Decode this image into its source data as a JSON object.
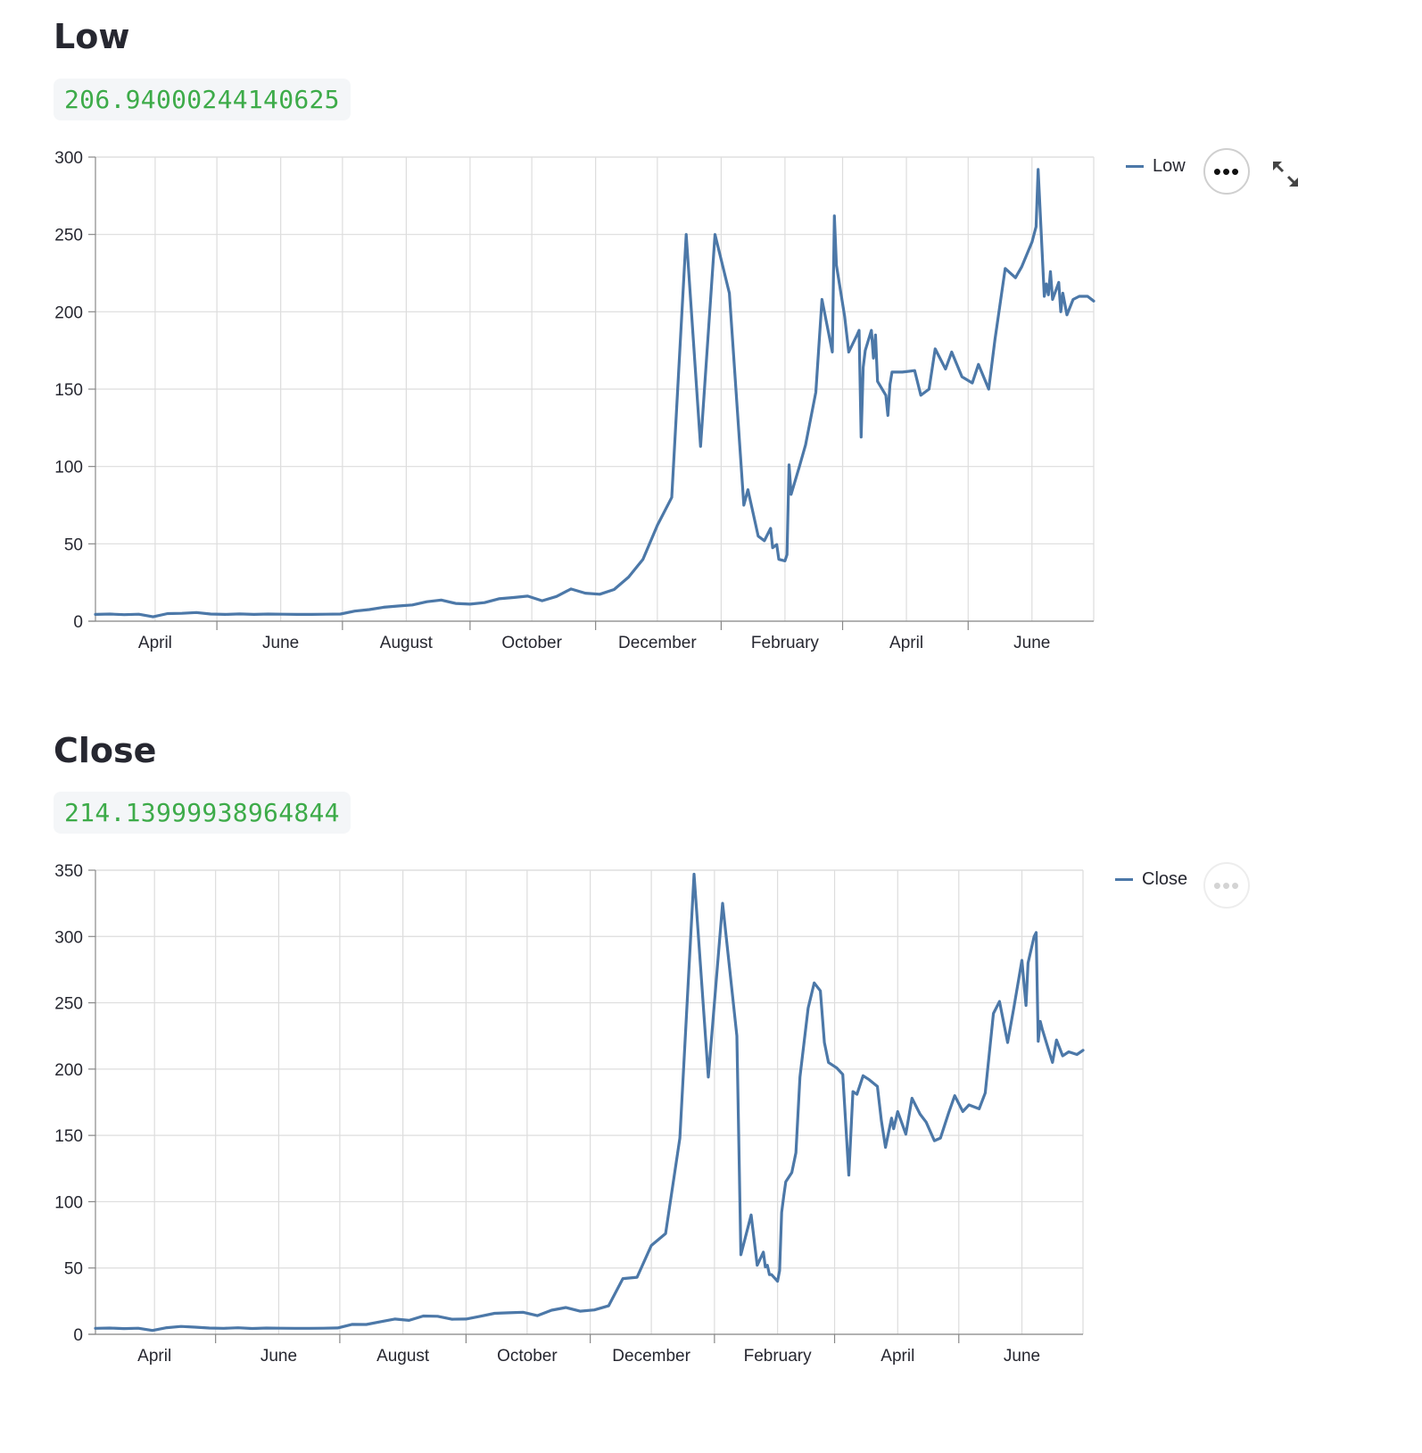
{
  "colors": {
    "series": "#4c78a8",
    "value_text": "#3dab49",
    "value_bg": "#f4f6f8",
    "title": "#262730",
    "grid": "#dddddd"
  },
  "icons": {
    "menu": "more-horizontal-icon",
    "expand": "fullscreen-expand-icon"
  },
  "sections": [
    {
      "title": "Low",
      "value": "206.94000244140625",
      "legend_label": "Low",
      "menu_glyph": "•••",
      "menu_active": true,
      "show_expand": true
    },
    {
      "title": "Close",
      "value": "214.13999938964844",
      "legend_label": "Close",
      "menu_glyph": "•••",
      "menu_active": false,
      "show_expand": false
    }
  ],
  "chart_data": [
    {
      "type": "line",
      "title": "",
      "xlabel": "",
      "ylabel": "",
      "ylim": [
        0,
        300
      ],
      "y_ticks": [
        0,
        50,
        100,
        150,
        200,
        250,
        300
      ],
      "x_ticks": [
        "April",
        "June",
        "August",
        "October",
        "December",
        "February",
        "April",
        "June"
      ],
      "x_domain": [
        "2020-03-03",
        "2021-07-01"
      ],
      "x_tick_dates": [
        "2020-04-01",
        "2020-06-01",
        "2020-08-01",
        "2020-10-01",
        "2020-12-01",
        "2021-02-01",
        "2021-04-01",
        "2021-06-01"
      ],
      "x_minor_tick_dates": [
        "2020-03-01",
        "2020-05-01",
        "2020-07-01",
        "2020-09-01",
        "2020-11-01",
        "2021-01-01",
        "2021-03-01",
        "2021-05-01"
      ],
      "grid": true,
      "legend": "top-right",
      "series": [
        {
          "name": "Low",
          "x": [
            "2020-03-03",
            "2020-03-10",
            "2020-03-17",
            "2020-03-24",
            "2020-03-31",
            "2020-04-07",
            "2020-04-14",
            "2020-04-21",
            "2020-04-28",
            "2020-05-05",
            "2020-05-12",
            "2020-05-19",
            "2020-05-26",
            "2020-06-02",
            "2020-06-09",
            "2020-06-16",
            "2020-06-23",
            "2020-06-30",
            "2020-07-07",
            "2020-07-14",
            "2020-07-21",
            "2020-07-28",
            "2020-08-04",
            "2020-08-11",
            "2020-08-18",
            "2020-08-25",
            "2020-09-01",
            "2020-09-08",
            "2020-09-15",
            "2020-09-22",
            "2020-09-29",
            "2020-10-06",
            "2020-10-13",
            "2020-10-20",
            "2020-10-27",
            "2020-11-03",
            "2020-11-10",
            "2020-11-17",
            "2020-11-24",
            "2020-12-01",
            "2020-12-08",
            "2020-12-15",
            "2020-12-22",
            "2020-12-29",
            "2021-01-05",
            "2021-01-12",
            "2021-01-14",
            "2021-01-19",
            "2021-01-22",
            "2021-01-25",
            "2021-01-26",
            "2021-01-27",
            "2021-01-28",
            "2021-01-29",
            "2021-02-01",
            "2021-02-02",
            "2021-02-03",
            "2021-02-04",
            "2021-02-08",
            "2021-02-11",
            "2021-02-16",
            "2021-02-19",
            "2021-02-24",
            "2021-02-25",
            "2021-02-26",
            "2021-03-02",
            "2021-03-04",
            "2021-03-08",
            "2021-03-09",
            "2021-03-10",
            "2021-03-11",
            "2021-03-12",
            "2021-03-15",
            "2021-03-16",
            "2021-03-17",
            "2021-03-18",
            "2021-03-22",
            "2021-03-23",
            "2021-03-24",
            "2021-03-25",
            "2021-03-30",
            "2021-04-05",
            "2021-04-08",
            "2021-04-12",
            "2021-04-15",
            "2021-04-20",
            "2021-04-23",
            "2021-04-28",
            "2021-05-03",
            "2021-05-06",
            "2021-05-11",
            "2021-05-14",
            "2021-05-19",
            "2021-05-24",
            "2021-05-27",
            "2021-06-01",
            "2021-06-03",
            "2021-06-04",
            "2021-06-07",
            "2021-06-08",
            "2021-06-09",
            "2021-06-10",
            "2021-06-11",
            "2021-06-14",
            "2021-06-15",
            "2021-06-16",
            "2021-06-18",
            "2021-06-21",
            "2021-06-24",
            "2021-06-28",
            "2021-07-01"
          ],
          "values": [
            4.4,
            4.6,
            4.2,
            4.5,
            2.8,
            4.9,
            5.1,
            5.6,
            4.6,
            4.4,
            4.7,
            4.4,
            4.6,
            4.5,
            4.4,
            4.4,
            4.5,
            4.6,
            6.5,
            7.5,
            9.0,
            9.8,
            10.5,
            12.6,
            13.7,
            11.5,
            11.0,
            12.0,
            14.5,
            15.3,
            16.2,
            13.2,
            16.0,
            20.8,
            18.1,
            17.4,
            20.5,
            28.5,
            40.0,
            62.0,
            80.0,
            250.0,
            113.0,
            250.0,
            212.0,
            75.0,
            85.0,
            55.0,
            52.0,
            60.0,
            47.5,
            48.5,
            49.5,
            40.0,
            39.0,
            43.0,
            101.0,
            82.0,
            100.0,
            114.0,
            148.0,
            208.0,
            174.0,
            262.0,
            230.0,
            197.0,
            174.0,
            185.0,
            188.0,
            119.0,
            164.0,
            175.0,
            188.0,
            170.0,
            185.0,
            155.0,
            146.0,
            133.0,
            153.0,
            161.0,
            161.0,
            162.0,
            146.0,
            150.0,
            176.0,
            163.0,
            174.0,
            158.0,
            154.0,
            166.0,
            150.0,
            182.0,
            228.0,
            222.0,
            229.0,
            245.0,
            255.0,
            292.0,
            210.0,
            218.0,
            211.0,
            226.0,
            208.0,
            219.0,
            200.0,
            212.0,
            198.0,
            208.0,
            210.0,
            210.0,
            206.94
          ]
        }
      ]
    },
    {
      "type": "line",
      "title": "",
      "xlabel": "",
      "ylabel": "",
      "ylim": [
        0,
        350
      ],
      "y_ticks": [
        0,
        50,
        100,
        150,
        200,
        250,
        300,
        350
      ],
      "x_ticks": [
        "April",
        "June",
        "August",
        "October",
        "December",
        "February",
        "April",
        "June"
      ],
      "x_domain": [
        "2020-03-03",
        "2021-07-01"
      ],
      "x_tick_dates": [
        "2020-04-01",
        "2020-06-01",
        "2020-08-01",
        "2020-10-01",
        "2020-12-01",
        "2021-02-01",
        "2021-04-01",
        "2021-06-01"
      ],
      "x_minor_tick_dates": [
        "2020-03-01",
        "2020-05-01",
        "2020-07-01",
        "2020-09-01",
        "2020-11-01",
        "2021-01-01",
        "2021-03-01",
        "2021-05-01"
      ],
      "grid": true,
      "legend": "top-right",
      "series": [
        {
          "name": "Close",
          "x": [
            "2020-03-03",
            "2020-03-10",
            "2020-03-17",
            "2020-03-24",
            "2020-03-31",
            "2020-04-07",
            "2020-04-14",
            "2020-04-21",
            "2020-04-28",
            "2020-05-05",
            "2020-05-12",
            "2020-05-19",
            "2020-05-26",
            "2020-06-02",
            "2020-06-09",
            "2020-06-16",
            "2020-06-23",
            "2020-06-30",
            "2020-07-07",
            "2020-07-14",
            "2020-07-21",
            "2020-07-28",
            "2020-08-04",
            "2020-08-11",
            "2020-08-18",
            "2020-08-25",
            "2020-09-01",
            "2020-09-08",
            "2020-09-15",
            "2020-09-22",
            "2020-09-29",
            "2020-10-06",
            "2020-10-13",
            "2020-10-20",
            "2020-10-27",
            "2020-11-03",
            "2020-11-10",
            "2020-11-17",
            "2020-11-24",
            "2020-12-01",
            "2020-12-08",
            "2020-12-15",
            "2020-12-22",
            "2020-12-29",
            "2021-01-05",
            "2021-01-12",
            "2021-01-14",
            "2021-01-19",
            "2021-01-22",
            "2021-01-25",
            "2021-01-26",
            "2021-01-27",
            "2021-01-28",
            "2021-01-29",
            "2021-02-01",
            "2021-02-02",
            "2021-02-03",
            "2021-02-04",
            "2021-02-05",
            "2021-02-08",
            "2021-02-10",
            "2021-02-12",
            "2021-02-16",
            "2021-02-19",
            "2021-02-22",
            "2021-02-24",
            "2021-02-26",
            "2021-03-02",
            "2021-03-05",
            "2021-03-08",
            "2021-03-10",
            "2021-03-12",
            "2021-03-15",
            "2021-03-18",
            "2021-03-22",
            "2021-03-24",
            "2021-03-26",
            "2021-03-29",
            "2021-03-30",
            "2021-04-01",
            "2021-04-05",
            "2021-04-08",
            "2021-04-12",
            "2021-04-15",
            "2021-04-19",
            "2021-04-22",
            "2021-04-26",
            "2021-04-29",
            "2021-05-03",
            "2021-05-06",
            "2021-05-11",
            "2021-05-14",
            "2021-05-18",
            "2021-05-21",
            "2021-05-25",
            "2021-05-28",
            "2021-06-01",
            "2021-06-03",
            "2021-06-04",
            "2021-06-07",
            "2021-06-08",
            "2021-06-09",
            "2021-06-10",
            "2021-06-11",
            "2021-06-14",
            "2021-06-16",
            "2021-06-18",
            "2021-06-21",
            "2021-06-24",
            "2021-06-28",
            "2021-07-01"
          ],
          "values": [
            4.5,
            4.7,
            4.3,
            4.6,
            2.9,
            5.0,
            5.9,
            5.4,
            4.7,
            4.5,
            4.9,
            4.4,
            4.7,
            4.6,
            4.5,
            4.5,
            4.6,
            4.8,
            7.5,
            7.4,
            9.5,
            11.5,
            10.5,
            13.8,
            13.6,
            11.4,
            11.5,
            13.6,
            15.8,
            16.2,
            16.6,
            14.1,
            18.2,
            20.2,
            17.4,
            18.4,
            21.5,
            42.0,
            43.0,
            67.0,
            76.0,
            148.0,
            347.0,
            194.0,
            325.0,
            225.0,
            60.0,
            90.0,
            52.0,
            62.0,
            50.8,
            52.0,
            45.0,
            45.0,
            40.0,
            48.0,
            92.0,
            104.0,
            115.0,
            122.0,
            137.0,
            194.0,
            246.0,
            265.0,
            259.0,
            220.0,
            205.0,
            201.0,
            196.0,
            120.0,
            183.0,
            181.0,
            195.0,
            192.0,
            187.0,
            161.0,
            141.0,
            163.0,
            155.0,
            168.0,
            151.0,
            178.0,
            166.0,
            160.0,
            146.0,
            148.0,
            167.0,
            180.0,
            168.0,
            173.0,
            170.0,
            182.0,
            242.0,
            251.0,
            220.0,
            246.0,
            282.0,
            248.0,
            280.0,
            300.0,
            303.0,
            221.0,
            236.0,
            230.0,
            215.0,
            205.0,
            222.0,
            210.0,
            213.0,
            211.0,
            214.14
          ]
        }
      ]
    }
  ]
}
